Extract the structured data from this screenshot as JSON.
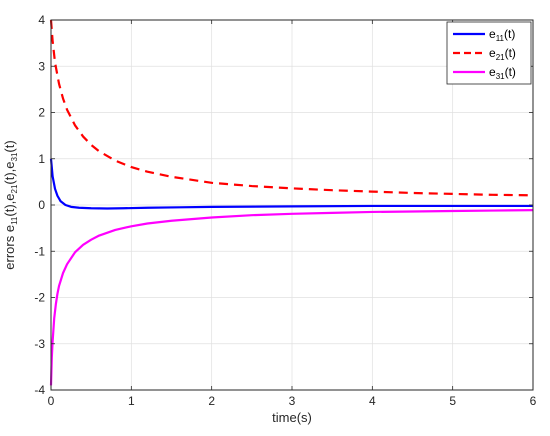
{
  "chart_data": {
    "type": "line",
    "title": "",
    "xlabel": "time(s)",
    "ylabel": {
      "parts": [
        {
          "base": "errors e",
          "sub": "11"
        },
        {
          "base": "(t),e",
          "sub": "21"
        },
        {
          "base": "(t),e",
          "sub": "31"
        },
        {
          "base": "(t)",
          "sub": ""
        }
      ]
    },
    "xlim": [
      0,
      6
    ],
    "ylim": [
      -4,
      4
    ],
    "xticks": [
      "0",
      "1",
      "2",
      "3",
      "4",
      "5",
      "6"
    ],
    "yticks": [
      "-4",
      "-3",
      "-2",
      "-1",
      "0",
      "1",
      "2",
      "3",
      "4"
    ],
    "grid": true,
    "legend_position": "top-right",
    "series": [
      {
        "name": {
          "base": "e",
          "sub": "11",
          "suffix": "(t)"
        },
        "color": "#0000ff",
        "dash": "solid",
        "x": [
          0,
          0.02,
          0.05,
          0.08,
          0.12,
          0.18,
          0.25,
          0.35,
          0.5,
          0.7,
          0.9,
          1.2,
          1.6,
          2,
          3,
          4,
          5,
          6
        ],
        "y": [
          1.0,
          0.62,
          0.35,
          0.2,
          0.08,
          0.0,
          -0.04,
          -0.06,
          -0.07,
          -0.075,
          -0.07,
          -0.06,
          -0.05,
          -0.04,
          -0.03,
          -0.02,
          -0.02,
          -0.02
        ]
      },
      {
        "name": {
          "base": "e",
          "sub": "21",
          "suffix": "(t)"
        },
        "color": "#ff0000",
        "dash": "dashed",
        "x": [
          0,
          0.02,
          0.05,
          0.1,
          0.15,
          0.2,
          0.3,
          0.4,
          0.5,
          0.6,
          0.8,
          1,
          1.2,
          1.5,
          2,
          2.5,
          3,
          3.5,
          4,
          4.5,
          5,
          5.5,
          6
        ],
        "y": [
          4.0,
          3.55,
          3.08,
          2.62,
          2.3,
          2.06,
          1.72,
          1.48,
          1.3,
          1.16,
          0.96,
          0.82,
          0.72,
          0.61,
          0.48,
          0.41,
          0.36,
          0.32,
          0.29,
          0.26,
          0.24,
          0.22,
          0.21
        ]
      },
      {
        "name": {
          "base": "e",
          "sub": "31",
          "suffix": "(t)"
        },
        "color": "#ff00ff",
        "dash": "solid",
        "x": [
          0,
          0.01,
          0.02,
          0.04,
          0.06,
          0.08,
          0.1,
          0.15,
          0.2,
          0.3,
          0.4,
          0.5,
          0.6,
          0.8,
          1,
          1.2,
          1.5,
          2,
          2.5,
          3,
          3.5,
          4,
          4.5,
          5,
          5.5,
          6
        ],
        "y": [
          -3.9,
          -3.3,
          -2.95,
          -2.45,
          -2.15,
          -1.92,
          -1.75,
          -1.47,
          -1.28,
          -1.02,
          -0.86,
          -0.75,
          -0.66,
          -0.54,
          -0.46,
          -0.4,
          -0.34,
          -0.27,
          -0.22,
          -0.19,
          -0.17,
          -0.15,
          -0.14,
          -0.13,
          -0.12,
          -0.11
        ]
      }
    ]
  }
}
